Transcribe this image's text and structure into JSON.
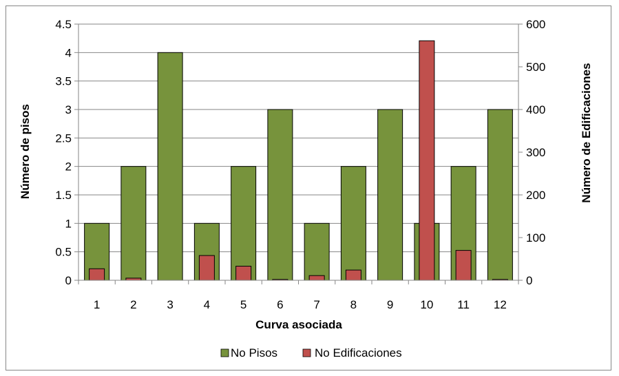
{
  "chart_data": {
    "type": "bar",
    "title": "",
    "xlabel": "Curva asociada",
    "ylabel": "Número de pisos",
    "y2label": "Número de Edificaciones",
    "categories": [
      "1",
      "2",
      "3",
      "4",
      "5",
      "6",
      "7",
      "8",
      "9",
      "10",
      "11",
      "12"
    ],
    "ylim": [
      0,
      4.5
    ],
    "y2lim": [
      0,
      600
    ],
    "yticks": [
      "0",
      "0.5",
      "1",
      "1.5",
      "2",
      "2.5",
      "3",
      "3.5",
      "4",
      "4.5"
    ],
    "y2ticks": [
      "0",
      "100",
      "200",
      "300",
      "400",
      "500",
      "600"
    ],
    "grid": true,
    "legend_position": "bottom",
    "series": [
      {
        "name": "No Pisos",
        "axis": "left",
        "color": "#77933C",
        "values": [
          1,
          2,
          4,
          1,
          2,
          3,
          1,
          2,
          3,
          1,
          2,
          3
        ]
      },
      {
        "name": "No Edificaciones",
        "axis": "right",
        "color": "#C0504D",
        "values": [
          27,
          5,
          0,
          58,
          33,
          2,
          11,
          24,
          0,
          561,
          70,
          2
        ]
      }
    ]
  }
}
